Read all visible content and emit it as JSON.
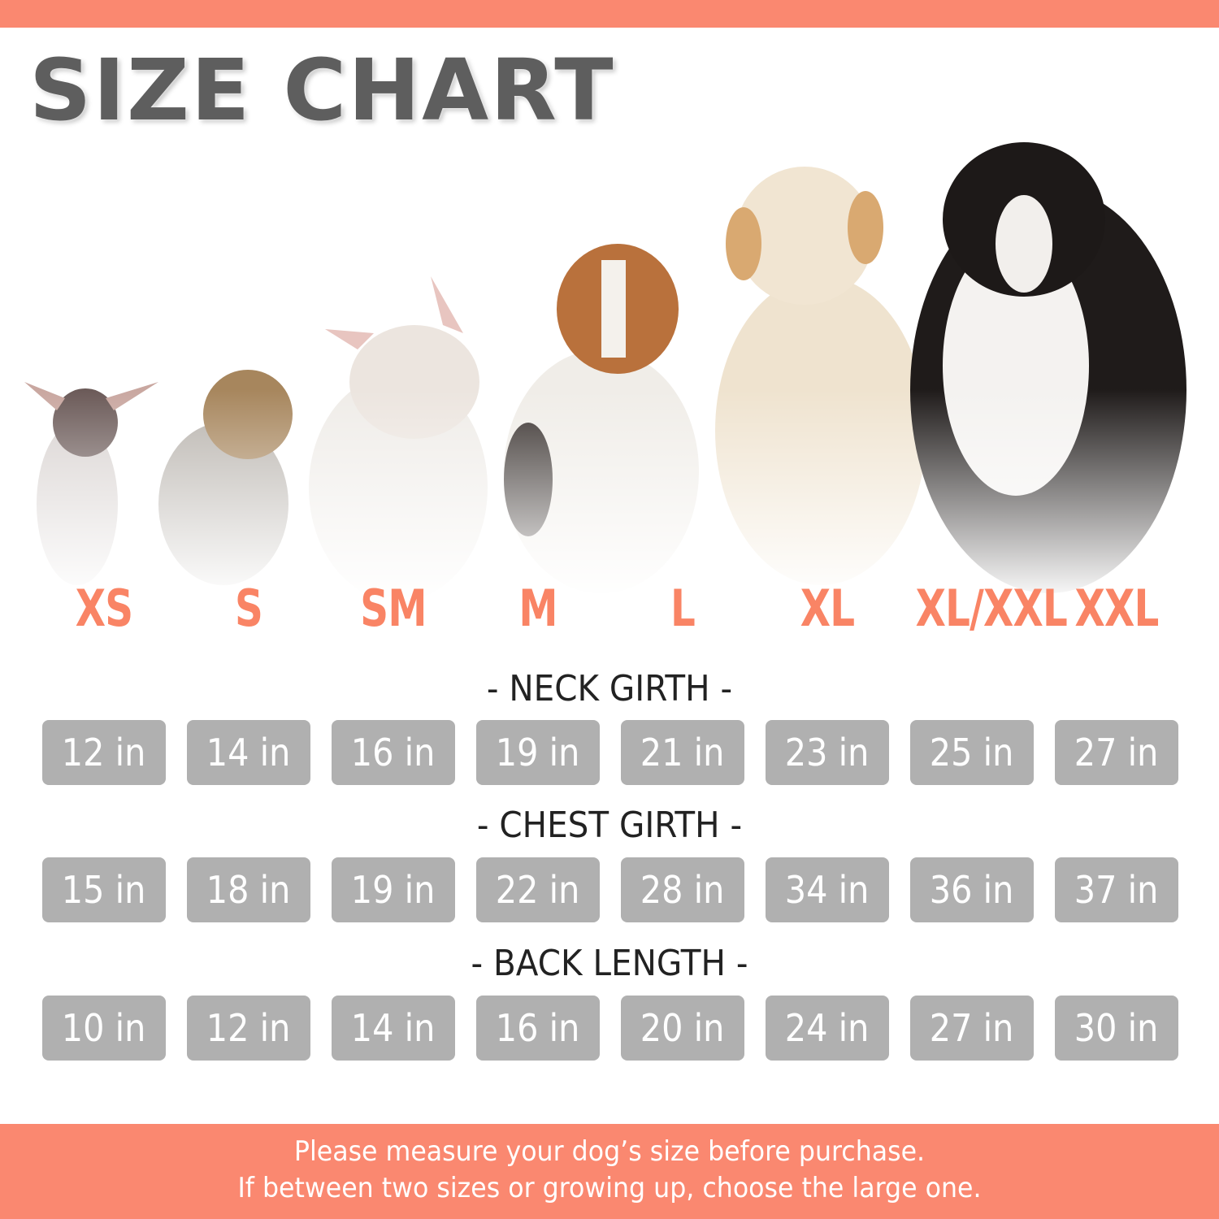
{
  "title": "SIZE CHART",
  "colors": {
    "accent": "#FA8870",
    "size_label": "#F98465",
    "cell_bg": "#B0B0B0",
    "title": "#5E5E5E"
  },
  "sizes": [
    "XS",
    "S",
    "SM",
    "M",
    "L",
    "XL",
    "XL/XXL",
    "XXL"
  ],
  "dog_images": [
    "chihuahua",
    "yorkshire-terrier",
    "french-bulldog",
    "beagle",
    "golden-retriever",
    "bernese-mountain-dog"
  ],
  "sections": [
    {
      "title": "- NECK GIRTH -",
      "values": [
        "12 in",
        "14 in",
        "16 in",
        "19 in",
        "21 in",
        "23 in",
        "25 in",
        "27 in"
      ]
    },
    {
      "title": "- CHEST GIRTH -",
      "values": [
        "15 in",
        "18 in",
        "19 in",
        "22 in",
        "28 in",
        "34 in",
        "36 in",
        "37 in"
      ]
    },
    {
      "title": "- BACK LENGTH -",
      "values": [
        "10 in",
        "12 in",
        "14 in",
        "16 in",
        "20 in",
        "24 in",
        "27 in",
        "30 in"
      ]
    }
  ],
  "footer": {
    "line1": "Please measure your dog’s size before purchase.",
    "line2": "If between two sizes or growing up, choose the large one."
  }
}
